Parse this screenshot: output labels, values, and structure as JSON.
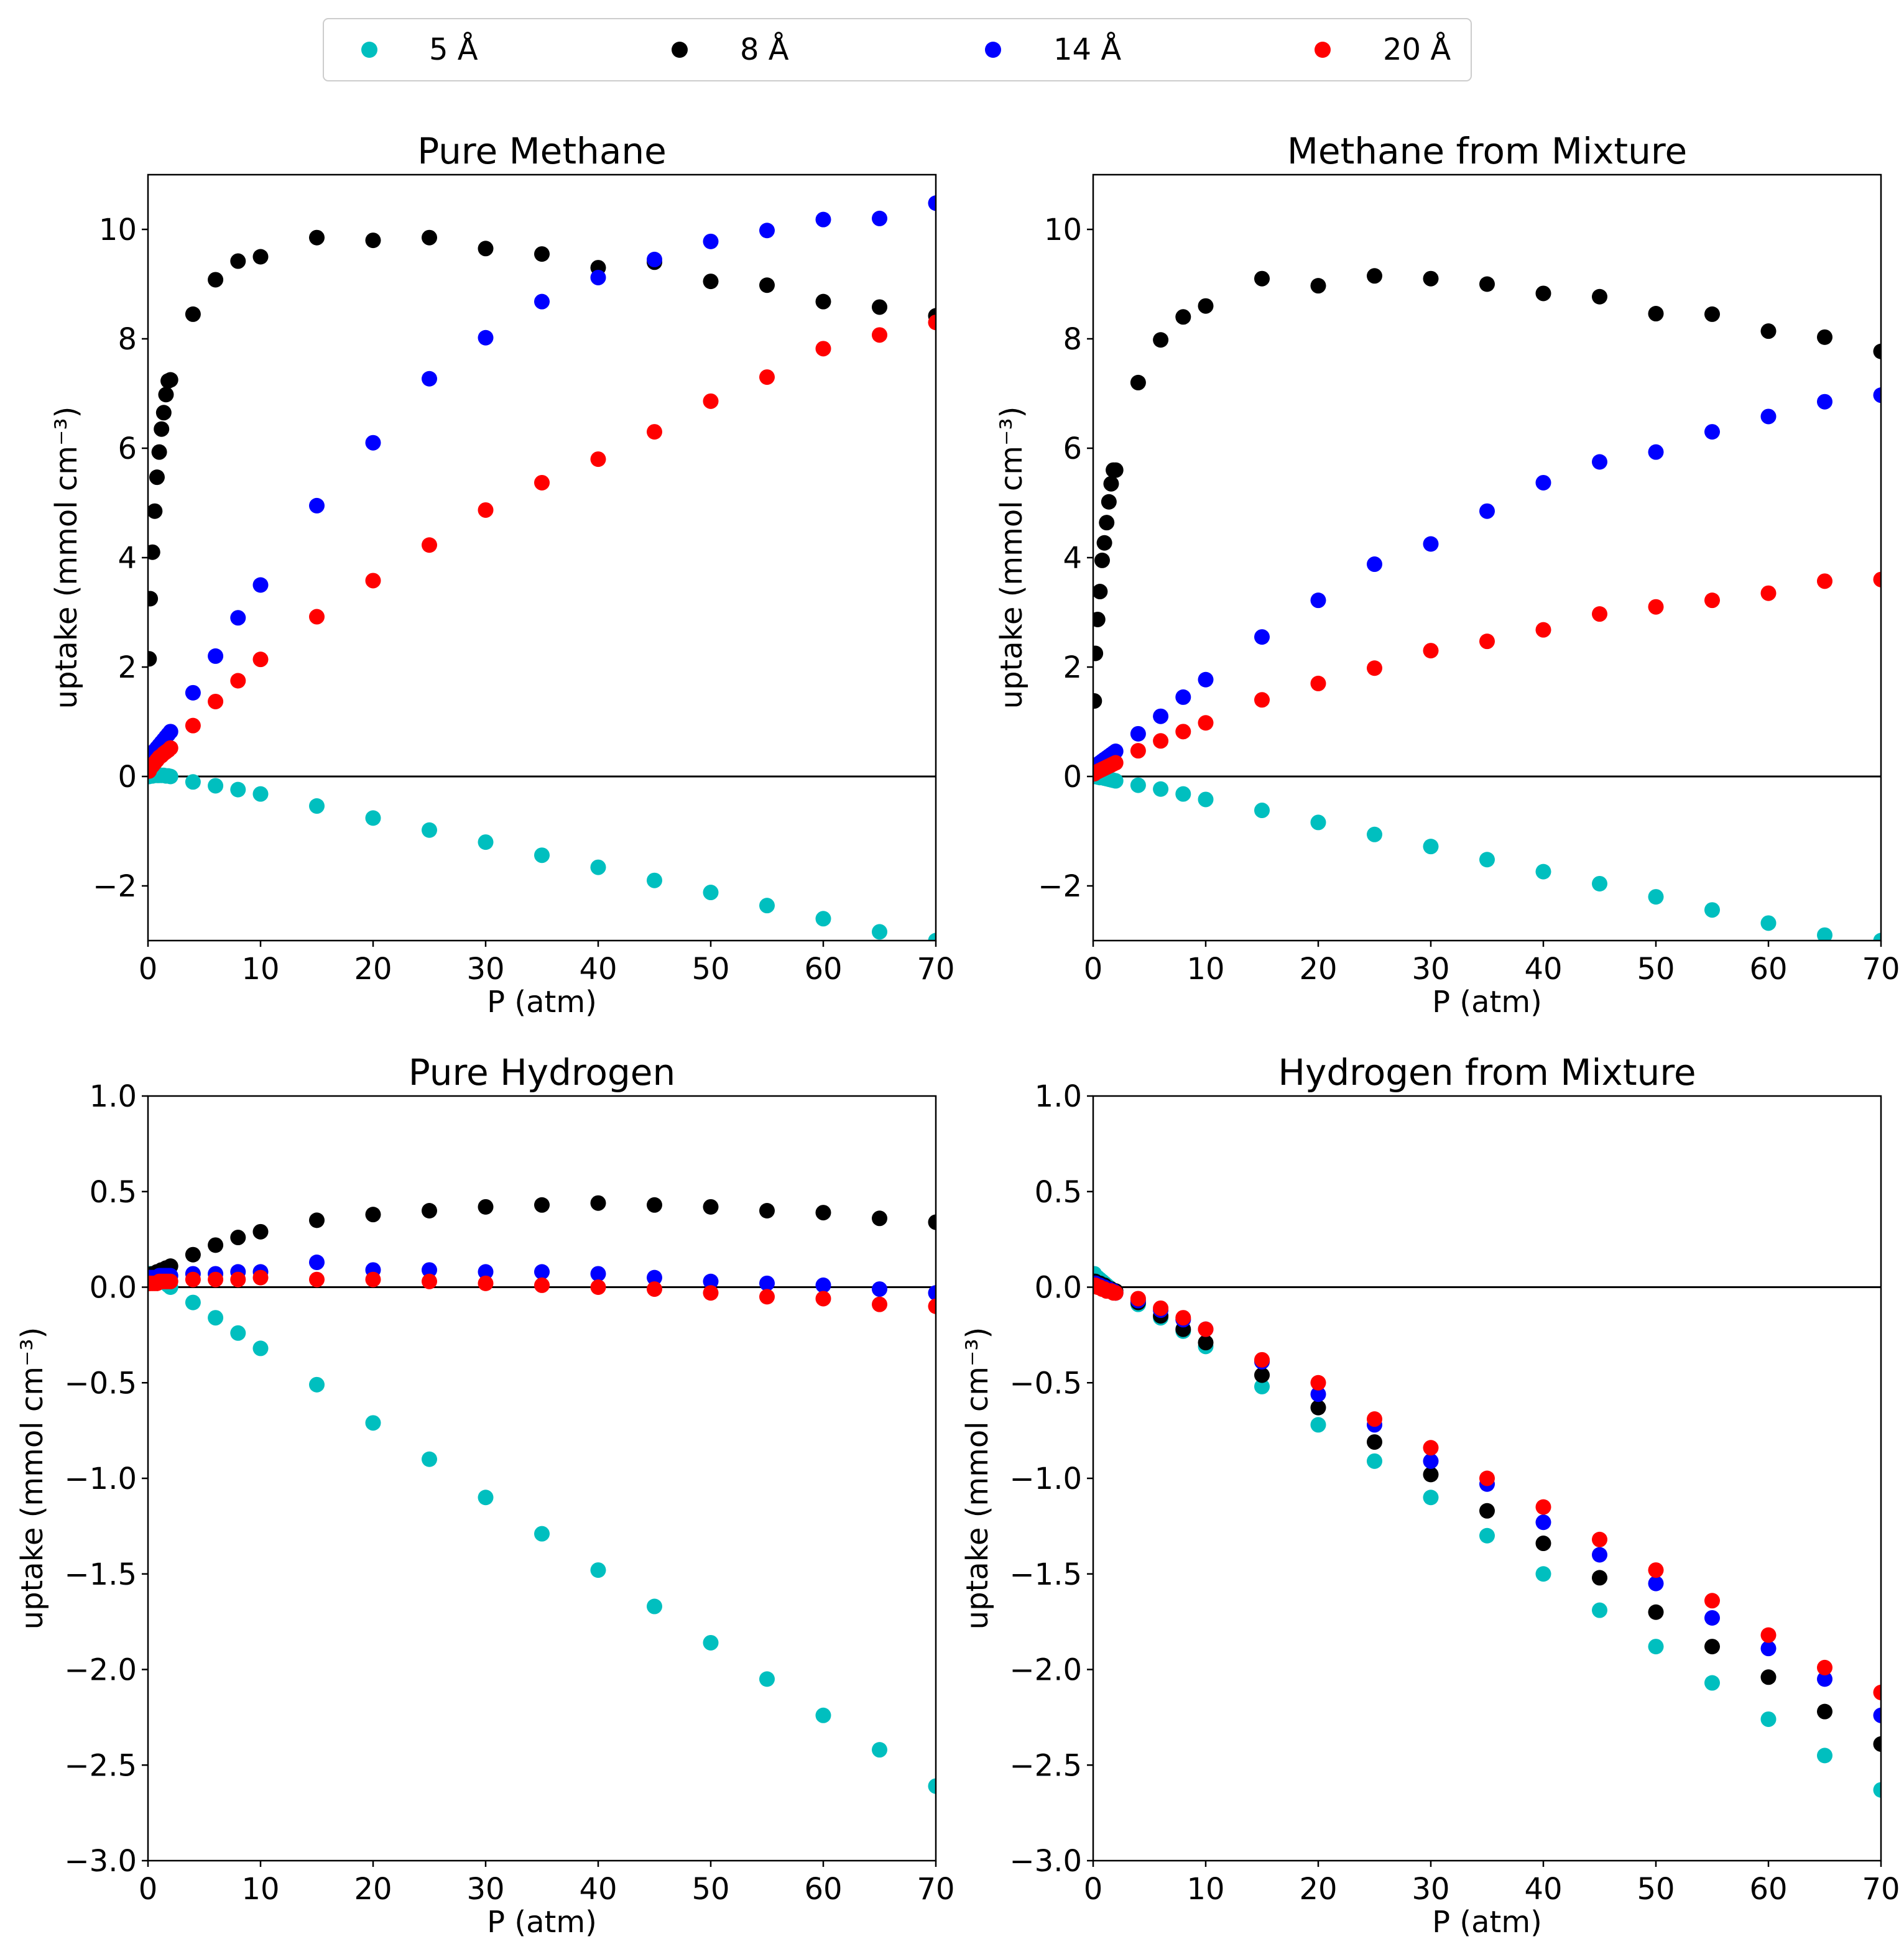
{
  "legend": {
    "placement": "top-center",
    "entries": [
      {
        "label": "5 Å",
        "color": "#00bfbf"
      },
      {
        "label": "8 Å",
        "color": "#000000"
      },
      {
        "label": "14 Å",
        "color": "#0000ff"
      },
      {
        "label": "20 Å",
        "color": "#ff0000"
      }
    ]
  },
  "chart_data": [
    {
      "type": "scatter",
      "title": "Pure Methane",
      "xlabel": "P (atm)",
      "ylabel": "uptake (mmol cm⁻³)",
      "xlim": [
        0,
        70
      ],
      "ylim": [
        -3,
        11
      ],
      "xticks": [
        0,
        10,
        20,
        30,
        40,
        50,
        60,
        70
      ],
      "xtick_labels": [
        "0",
        "10",
        "20",
        "30",
        "40",
        "50",
        "60",
        "70"
      ],
      "yticks": [
        -2,
        0,
        2,
        4,
        6,
        8,
        10
      ],
      "ytick_labels": [
        "−2",
        "0",
        "2",
        "4",
        "6",
        "8",
        "10"
      ],
      "zero_line": true,
      "x": [
        0.1,
        0.2,
        0.4,
        0.6,
        0.8,
        1,
        1.2,
        1.4,
        1.6,
        1.8,
        2,
        4,
        6,
        8,
        10,
        15,
        20,
        25,
        30,
        35,
        40,
        45,
        50,
        55,
        60,
        65,
        70
      ],
      "series": [
        {
          "name": "5 Å",
          "color": "#00bfbf",
          "values": [
            0,
            0.01,
            0.01,
            0.02,
            0.02,
            0.02,
            0.02,
            0.02,
            0.01,
            0.01,
            0,
            -0.1,
            -0.17,
            -0.24,
            -0.32,
            -0.54,
            -0.76,
            -0.98,
            -1.2,
            -1.44,
            -1.66,
            -1.9,
            -2.12,
            -2.36,
            -2.6,
            -2.84,
            -3.0
          ]
        },
        {
          "name": "8 Å",
          "color": "#000000",
          "values": [
            2.15,
            3.25,
            4.1,
            4.85,
            5.47,
            5.93,
            6.35,
            6.65,
            6.98,
            7.23,
            7.25,
            8.45,
            9.08,
            9.42,
            9.5,
            9.85,
            9.8,
            9.85,
            9.65,
            9.55,
            9.3,
            9.4,
            9.05,
            8.98,
            8.68,
            8.58,
            8.42
          ]
        },
        {
          "name": "14 Å",
          "color": "#0000ff",
          "values": [
            0.3,
            0.35,
            0.42,
            0.47,
            0.52,
            0.57,
            0.62,
            0.67,
            0.72,
            0.77,
            0.82,
            1.53,
            2.2,
            2.9,
            3.5,
            4.95,
            6.1,
            7.27,
            8.02,
            8.68,
            9.12,
            9.45,
            9.78,
            9.98,
            10.18,
            10.2,
            10.48
          ]
        },
        {
          "name": "20 Å",
          "color": "#ff0000",
          "values": [
            0.1,
            0.15,
            0.2,
            0.25,
            0.3,
            0.35,
            0.38,
            0.42,
            0.45,
            0.48,
            0.52,
            0.93,
            1.37,
            1.75,
            2.14,
            2.92,
            3.58,
            4.23,
            4.87,
            5.37,
            5.8,
            6.3,
            6.86,
            7.3,
            7.82,
            8.07,
            8.3
          ]
        }
      ]
    },
    {
      "type": "scatter",
      "title": "Methane from Mixture",
      "xlabel": "P (atm)",
      "ylabel": "uptake (mmol cm⁻³)",
      "xlim": [
        0,
        70
      ],
      "ylim": [
        -3,
        11
      ],
      "xticks": [
        0,
        10,
        20,
        30,
        40,
        50,
        60,
        70
      ],
      "xtick_labels": [
        "0",
        "10",
        "20",
        "30",
        "40",
        "50",
        "60",
        "70"
      ],
      "yticks": [
        -2,
        0,
        2,
        4,
        6,
        8,
        10
      ],
      "ytick_labels": [
        "−2",
        "0",
        "2",
        "4",
        "6",
        "8",
        "10"
      ],
      "zero_line": true,
      "x": [
        0.1,
        0.2,
        0.4,
        0.6,
        0.8,
        1,
        1.2,
        1.4,
        1.6,
        1.8,
        2,
        4,
        6,
        8,
        10,
        15,
        20,
        25,
        30,
        35,
        40,
        45,
        50,
        55,
        60,
        65,
        70
      ],
      "series": [
        {
          "name": "5 Å",
          "color": "#00bfbf",
          "values": [
            0,
            0,
            -0.01,
            -0.02,
            -0.02,
            -0.03,
            -0.04,
            -0.05,
            -0.06,
            -0.07,
            -0.08,
            -0.16,
            -0.23,
            -0.32,
            -0.42,
            -0.62,
            -0.84,
            -1.06,
            -1.28,
            -1.52,
            -1.74,
            -1.96,
            -2.2,
            -2.44,
            -2.68,
            -2.9,
            -3.0
          ]
        },
        {
          "name": "8 Å",
          "color": "#000000",
          "values": [
            1.38,
            2.25,
            2.87,
            3.38,
            3.95,
            4.27,
            4.64,
            5.02,
            5.35,
            5.6,
            5.6,
            7.2,
            7.98,
            8.4,
            8.6,
            9.1,
            8.97,
            9.15,
            9.1,
            9.0,
            8.83,
            8.77,
            8.46,
            8.45,
            8.14,
            8.03,
            7.77
          ]
        },
        {
          "name": "14 Å",
          "color": "#0000ff",
          "values": [
            0.15,
            0.18,
            0.22,
            0.25,
            0.28,
            0.31,
            0.34,
            0.37,
            0.4,
            0.43,
            0.46,
            0.78,
            1.1,
            1.45,
            1.77,
            2.55,
            3.22,
            3.88,
            4.25,
            4.85,
            5.37,
            5.75,
            5.93,
            6.3,
            6.58,
            6.85,
            6.97
          ]
        },
        {
          "name": "20 Å",
          "color": "#ff0000",
          "values": [
            0.05,
            0.07,
            0.09,
            0.11,
            0.13,
            0.15,
            0.17,
            0.19,
            0.21,
            0.23,
            0.25,
            0.47,
            0.65,
            0.82,
            0.98,
            1.4,
            1.7,
            1.98,
            2.3,
            2.47,
            2.68,
            2.97,
            3.1,
            3.22,
            3.35,
            3.57,
            3.6
          ]
        }
      ]
    },
    {
      "type": "scatter",
      "title": "Pure Hydrogen",
      "xlabel": "P (atm)",
      "ylabel": "uptake (mmol cm⁻³)",
      "xlim": [
        0,
        70
      ],
      "ylim": [
        -3,
        1
      ],
      "xticks": [
        0,
        10,
        20,
        30,
        40,
        50,
        60,
        70
      ],
      "xtick_labels": [
        "0",
        "10",
        "20",
        "30",
        "40",
        "50",
        "60",
        "70"
      ],
      "yticks": [
        -3,
        -2.5,
        -2,
        -1.5,
        -1,
        -0.5,
        0,
        0.5,
        1
      ],
      "ytick_labels": [
        "−3.0",
        "−2.5",
        "−2.0",
        "−1.5",
        "−1.0",
        "−0.5",
        "0.0",
        "0.5",
        "1.0"
      ],
      "zero_line": true,
      "x": [
        0.1,
        0.2,
        0.4,
        0.6,
        0.8,
        1,
        1.2,
        1.4,
        1.6,
        1.8,
        2,
        4,
        6,
        8,
        10,
        15,
        20,
        25,
        30,
        35,
        40,
        45,
        50,
        55,
        60,
        65,
        70
      ],
      "series": [
        {
          "name": "5 Å",
          "color": "#00bfbf",
          "values": [
            0.07,
            0.07,
            0.06,
            0.06,
            0.05,
            0.04,
            0.04,
            0.03,
            0.02,
            0.01,
            0,
            -0.08,
            -0.16,
            -0.24,
            -0.32,
            -0.51,
            -0.71,
            -0.9,
            -1.1,
            -1.29,
            -1.48,
            -1.67,
            -1.86,
            -2.05,
            -2.24,
            -2.42,
            -2.61
          ]
        },
        {
          "name": "8 Å",
          "color": "#000000",
          "values": [
            0.06,
            0.06,
            0.07,
            0.07,
            0.08,
            0.08,
            0.09,
            0.09,
            0.1,
            0.1,
            0.11,
            0.17,
            0.22,
            0.26,
            0.29,
            0.35,
            0.38,
            0.4,
            0.42,
            0.43,
            0.44,
            0.43,
            0.42,
            0.4,
            0.39,
            0.36,
            0.34
          ]
        },
        {
          "name": "14 Å",
          "color": "#0000ff",
          "values": [
            0.05,
            0.05,
            0.05,
            0.05,
            0.05,
            0.06,
            0.06,
            0.06,
            0.06,
            0.06,
            0.06,
            0.07,
            0.07,
            0.08,
            0.08,
            0.13,
            0.09,
            0.09,
            0.08,
            0.08,
            0.07,
            0.05,
            0.03,
            0.02,
            0.01,
            -0.01,
            -0.03
          ]
        },
        {
          "name": "20 Å",
          "color": "#ff0000",
          "values": [
            0.02,
            0.02,
            0.02,
            0.02,
            0.02,
            0.03,
            0.03,
            0.03,
            0.03,
            0.03,
            0.03,
            0.04,
            0.04,
            0.04,
            0.05,
            0.04,
            0.04,
            0.03,
            0.02,
            0.01,
            0,
            -0.01,
            -0.03,
            -0.05,
            -0.06,
            -0.09,
            -0.1
          ]
        }
      ]
    },
    {
      "type": "scatter",
      "title": "Hydrogen from Mixture",
      "xlabel": "P (atm)",
      "ylabel": "uptake (mmol cm⁻³)",
      "xlim": [
        0,
        70
      ],
      "ylim": [
        -3,
        1
      ],
      "xticks": [
        0,
        10,
        20,
        30,
        40,
        50,
        60,
        70
      ],
      "xtick_labels": [
        "0",
        "10",
        "20",
        "30",
        "40",
        "50",
        "60",
        "70"
      ],
      "yticks": [
        -3,
        -2.5,
        -2,
        -1.5,
        -1,
        -0.5,
        0,
        0.5,
        1
      ],
      "ytick_labels": [
        "−3.0",
        "−2.5",
        "−2.0",
        "−1.5",
        "−1.0",
        "−0.5",
        "0.0",
        "0.5",
        "1.0"
      ],
      "zero_line": true,
      "x": [
        0.1,
        0.2,
        0.4,
        0.6,
        0.8,
        1,
        1.2,
        1.4,
        1.6,
        1.8,
        2,
        4,
        6,
        8,
        10,
        15,
        20,
        25,
        30,
        35,
        40,
        45,
        50,
        55,
        60,
        65,
        70
      ],
      "series": [
        {
          "name": "5 Å",
          "color": "#00bfbf",
          "values": [
            0.07,
            0.06,
            0.05,
            0.04,
            0.03,
            0.02,
            0.01,
            0,
            -0.01,
            -0.02,
            -0.03,
            -0.09,
            -0.16,
            -0.23,
            -0.31,
            -0.52,
            -0.72,
            -0.91,
            -1.1,
            -1.3,
            -1.5,
            -1.69,
            -1.88,
            -2.07,
            -2.26,
            -2.45,
            -2.63
          ]
        },
        {
          "name": "8 Å",
          "color": "#000000",
          "values": [
            0.03,
            0.03,
            0.02,
            0.02,
            0.01,
            0.01,
            0,
            -0.01,
            -0.01,
            -0.02,
            -0.02,
            -0.08,
            -0.15,
            -0.22,
            -0.29,
            -0.46,
            -0.63,
            -0.81,
            -0.98,
            -1.17,
            -1.34,
            -1.52,
            -1.7,
            -1.88,
            -2.04,
            -2.22,
            -2.39
          ]
        },
        {
          "name": "14 Å",
          "color": "#0000ff",
          "values": [
            0.02,
            0.02,
            0.01,
            0.01,
            0,
            0,
            -0.01,
            -0.01,
            -0.02,
            -0.02,
            -0.03,
            -0.07,
            -0.12,
            -0.17,
            -0.22,
            -0.39,
            -0.56,
            -0.72,
            -0.91,
            -1.03,
            -1.23,
            -1.4,
            -1.55,
            -1.73,
            -1.89,
            -2.05,
            -2.24
          ]
        },
        {
          "name": "20 Å",
          "color": "#ff0000",
          "values": [
            0.01,
            0.01,
            0,
            0,
            -0.01,
            -0.01,
            -0.02,
            -0.02,
            -0.02,
            -0.03,
            -0.03,
            -0.06,
            -0.11,
            -0.16,
            -0.22,
            -0.38,
            -0.5,
            -0.69,
            -0.84,
            -1.0,
            -1.15,
            -1.32,
            -1.48,
            -1.64,
            -1.82,
            -1.99,
            -2.12
          ]
        }
      ]
    }
  ]
}
